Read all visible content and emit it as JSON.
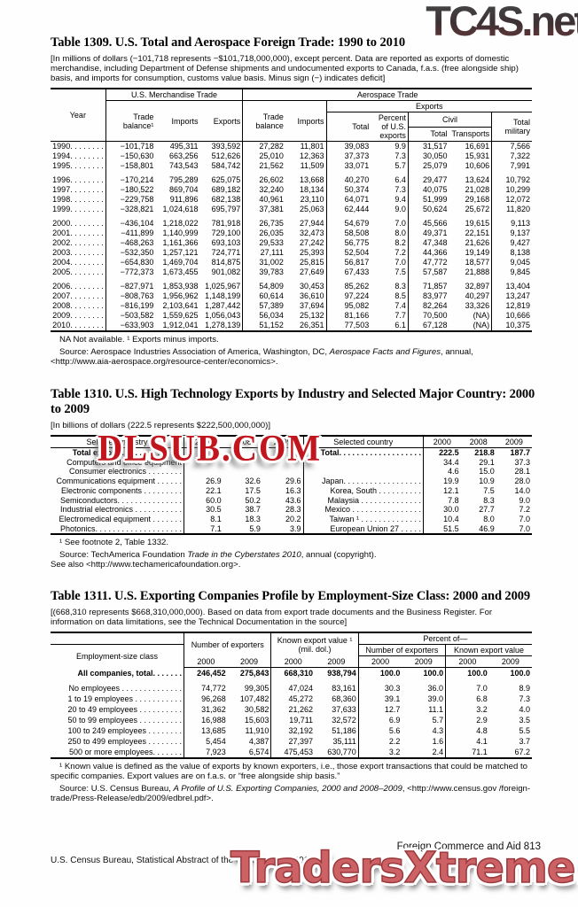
{
  "watermarks": {
    "top": "TC4S.net",
    "middle": "DLSUB.COM",
    "bottom": "TradersXtreme.com"
  },
  "footer": {
    "right": "Foreign Commerce and Aid  813",
    "left": "U.S. Census Bureau, Statistical Abstract of the United States: 2012"
  },
  "t1309": {
    "title": "Table 1309. U.S. Total and Aerospace Foreign Trade: 1990 to 2010",
    "headnote": "[In millions of dollars (−101,718 represents −$101,718,000,000), except percent. Data are reported as exports of domestic merchandise, including Department of Defense shipments and undocumented exports to Canada, f.a.s. (free alongside ship) basis, and imports for consumption, customs value basis. Minus sign (−) indicates deficit]",
    "h": {
      "year": "Year",
      "merch": "U.S. Merchandise Trade",
      "aero": "Aerospace Trade",
      "exports_grp": "Exports",
      "civil": "Civil",
      "trade_balance_fn": "Trade balance¹",
      "trade_balance": "Trade balance",
      "imports": "Imports",
      "exports": "Exports",
      "total": "Total",
      "pct": "Percent of U.S. exports",
      "transports": "Transports",
      "total_military": "Total military"
    },
    "rows": [
      {
        "cells": [
          "1990. . . . . . . .",
          "−101,718",
          "495,311",
          "393,592",
          "27,282",
          "11,801",
          "39,083",
          "9.9",
          "31,517",
          "16,691",
          "7,566"
        ]
      },
      {
        "cells": [
          "1994. . . . . . . .",
          "−150,630",
          "663,256",
          "512,626",
          "25,010",
          "12,363",
          "37,373",
          "7.3",
          "30,050",
          "15,931",
          "7,322"
        ]
      },
      {
        "cells": [
          "1995. . . . . . . .",
          "−158,801",
          "743,543",
          "584,742",
          "21,562",
          "11,509",
          "33,071",
          "5.7",
          "25,079",
          "10,606",
          "7,991"
        ]
      },
      {
        "gap": true,
        "cells": [
          "1996. . . . . . . .",
          "−170,214",
          "795,289",
          "625,075",
          "26,602",
          "13,668",
          "40,270",
          "6.4",
          "29,477",
          "13,624",
          "10,792"
        ]
      },
      {
        "cells": [
          "1997. . . . . . . .",
          "−180,522",
          "869,704",
          "689,182",
          "32,240",
          "18,134",
          "50,374",
          "7.3",
          "40,075",
          "21,028",
          "10,299"
        ]
      },
      {
        "cells": [
          "1998. . . . . . . .",
          "−229,758",
          "911,896",
          "682,138",
          "40,961",
          "23,110",
          "64,071",
          "9.4",
          "51,999",
          "29,168",
          "12,072"
        ]
      },
      {
        "cells": [
          "1999. . . . . . . .",
          "−328,821",
          "1,024,618",
          "695,797",
          "37,381",
          "25,063",
          "62,444",
          "9.0",
          "50,624",
          "25,672",
          "11,820"
        ]
      },
      {
        "gap": true,
        "cells": [
          "2000. . . . . . . .",
          "−436,104",
          "1,218,022",
          "781,918",
          "26,735",
          "27,944",
          "54,679",
          "7.0",
          "45,566",
          "19,615",
          "9,113"
        ]
      },
      {
        "cells": [
          "2001. . . . . . . .",
          "−411,899",
          "1,140,999",
          "729,100",
          "26,035",
          "32,473",
          "58,508",
          "8.0",
          "49,371",
          "22,151",
          "9,137"
        ]
      },
      {
        "cells": [
          "2002. . . . . . . .",
          "−468,263",
          "1,161,366",
          "693,103",
          "29,533",
          "27,242",
          "56,775",
          "8.2",
          "47,348",
          "21,626",
          "9,427"
        ]
      },
      {
        "cells": [
          "2003. . . . . . . .",
          "−532,350",
          "1,257,121",
          "724,771",
          "27,111",
          "25,393",
          "52,504",
          "7.2",
          "44,366",
          "19,149",
          "8,138"
        ]
      },
      {
        "cells": [
          "2004. . . . . . . .",
          "−654,830",
          "1,469,704",
          "814,875",
          "31,002",
          "25,815",
          "56,817",
          "7.0",
          "47,772",
          "18,577",
          "9,045"
        ]
      },
      {
        "cells": [
          "2005. . . . . . . .",
          "−772,373",
          "1,673,455",
          "901,082",
          "39,783",
          "27,649",
          "67,433",
          "7.5",
          "57,587",
          "21,888",
          "9,845"
        ]
      },
      {
        "gap": true,
        "cells": [
          "2006. . . . . . . .",
          "−827,971",
          "1,853,938",
          "1,025,967",
          "54,809",
          "30,453",
          "85,262",
          "8.3",
          "71,857",
          "32,897",
          "13,404"
        ]
      },
      {
        "cells": [
          "2007. . . . . . . .",
          "−808,763",
          "1,956,962",
          "1,148,199",
          "60,614",
          "36,610",
          "97,224",
          "8.5",
          "83,977",
          "40,297",
          "13,247"
        ]
      },
      {
        "cells": [
          "2008. . . . . . . .",
          "−816,199",
          "2,103,641",
          "1,287,442",
          "57,389",
          "37,694",
          "95,082",
          "7.4",
          "82,264",
          "33,326",
          "12,819"
        ]
      },
      {
        "cells": [
          "2009. . . . . . . .",
          "−503,582",
          "1,559,625",
          "1,056,043",
          "56,034",
          "25,132",
          "81,166",
          "7.7",
          "70,500",
          "(NA)",
          "10,666"
        ]
      },
      {
        "cells": [
          "2010. . . . . . . .",
          "−633,903",
          "1,912,041",
          "1,278,139",
          "51,152",
          "26,351",
          "77,503",
          "6.1",
          "67,128",
          "(NA)",
          "10,375"
        ]
      }
    ],
    "footnote": "NA Not available. ¹ Exports minus imports.",
    "source_prefix": "Source: Aerospace Industries Association of America, Washington, DC, ",
    "source_italic": "Aerospace Facts and Figures",
    "source_suffix": ", annual,",
    "source_line2": "<http://www.aia-aerospace.org/resource-center/economics>."
  },
  "t1310": {
    "title": "Table 1310. U.S. High Technology Exports by Industry and Selected Major Country: 2000 to 2009",
    "headnote": "[In billions of dollars (222.5 represents $222,500,000,000)]",
    "h": {
      "industry": "Selected industry",
      "country": "Selected country",
      "y2000": "2000",
      "y2008": "2008",
      "y2009": "2009"
    },
    "rows": [
      {
        "bold": true,
        "cells": [
          "Total exports. . . . . . . . . . . . . .",
          "",
          "",
          "",
          "Total. . . . . . . . . . . . . . . . . . .",
          "222.5",
          "218.8",
          "187.7"
        ]
      },
      {
        "cells": [
          "Computers and office equipment",
          "",
          "",
          "",
          "",
          "34.4",
          "29.1",
          "37.3"
        ]
      },
      {
        "cells": [
          "Consumer electronics . . . . . . . .",
          "",
          "",
          "",
          "",
          "4.6",
          "15.0",
          "28.1"
        ]
      },
      {
        "cells": [
          "Communications equipment . . . . . .",
          "26.9",
          "32.6",
          "29.6",
          "Japan. . . . . . . . . . . . . . . . . .",
          "19.9",
          "10.9",
          "28.0"
        ]
      },
      {
        "cells": [
          "Electronic components . . . . . . . . .",
          "22.1",
          "17.5",
          "16.3",
          "Korea, South . . . . . . . . . .",
          "12.1",
          "7.5",
          "14.0"
        ]
      },
      {
        "cells": [
          "Semiconductors. . . . . . . . . . . . . . .",
          "60.0",
          "50.2",
          "43.6",
          "Malaysia . . . . . . . . . . . . . .",
          "7.8",
          "8.3",
          "9.0"
        ]
      },
      {
        "cells": [
          "Industrial electronics . . . . . . . . . . .",
          "30.5",
          "38.7",
          "28.3",
          "Mexico . . . . . . . . . . . . . . . .",
          "30.0",
          "27.7",
          "7.2"
        ]
      },
      {
        "cells": [
          "Electromedical equipment . . . . . . .",
          "8.1",
          "18.3",
          "20.2",
          "Taiwan ¹ . . . . . . . . . . . . . .",
          "10.4",
          "8.0",
          "7.0"
        ]
      },
      {
        "cells": [
          "Photonics. . . . . . . . . . . . . . . . . . . .",
          "7.1",
          "5.9",
          "3.9",
          "European Union 27 . . . . .",
          "51.5",
          "46.9",
          "7.0"
        ]
      }
    ],
    "footnote": "¹ See footnote 2, Table 1332.",
    "source_prefix": "Source: TechAmerica Foundation ",
    "source_italic": "Trade in the Cyberstates 2010",
    "source_suffix": ", annual (copyright).",
    "source_line2": "See also <http://www.techamericafoundation.org>."
  },
  "t1311": {
    "title": "Table 1311. U.S. Exporting Companies Profile by Employment-Size Class: 2000 and 2009",
    "headnote": "[(668,310 represents $668,310,000,000). Based on data from export trade documents and the Business Register. For information on data limitations, see the Technical Documentation in the source]",
    "h": {
      "stub": "Employment-size class",
      "num_exporters": "Number of exporters",
      "known_value_fn": "Known export value ¹ (mil. dol.)",
      "percent_of": "Percent of—",
      "known_value": "Known export value",
      "y2000": "2000",
      "y2009": "2009"
    },
    "rows": [
      {
        "bold": true,
        "cells": [
          "All companies, total. . . . . . .",
          "246,452",
          "275,843",
          "668,310",
          "938,794",
          "100.0",
          "100.0",
          "100.0",
          "100.0"
        ]
      },
      {
        "gap": true,
        "cells": [
          "No employees . . . . . . . . . . . . . .",
          "74,772",
          "99,305",
          "47,024",
          "83,161",
          "30.3",
          "36.0",
          "7.0",
          "8.9"
        ]
      },
      {
        "cells": [
          "1 to 19 employees . . . . . . . . . . .",
          "96,268",
          "107,482",
          "45,272",
          "68,360",
          "39.1",
          "39.0",
          "6.8",
          "7.3"
        ]
      },
      {
        "cells": [
          "20 to 49 employees . . . . . . . . . .",
          "31,362",
          "30,582",
          "21,262",
          "37,633",
          "12.7",
          "11.1",
          "3.2",
          "4.0"
        ]
      },
      {
        "cells": [
          "50 to 99 employees . . . . . . . . . .",
          "16,988",
          "15,603",
          "19,711",
          "32,572",
          "6.9",
          "5.7",
          "2.9",
          "3.5"
        ]
      },
      {
        "cells": [
          "100 to 249 employees . . . . . . . .",
          "13,685",
          "11,910",
          "32,192",
          "51,186",
          "5.6",
          "4.3",
          "4.8",
          "5.5"
        ]
      },
      {
        "cells": [
          "250 to 499 employees . . . . . . . .",
          "5,454",
          "4,387",
          "27,397",
          "35,111",
          "2.2",
          "1.6",
          "4.1",
          "3.7"
        ]
      },
      {
        "cells": [
          "500 or more employees. . . . . . .",
          "7,923",
          "6,574",
          "475,453",
          "630,770",
          "3.2",
          "2.4",
          "71.1",
          "67.2"
        ]
      }
    ],
    "footnote": "¹ Known value is defined as the value of exports by known exporters, i.e., those export transactions that could be matched to specific companies. Export values are on f.a.s. or “free alongside ship basis.”",
    "source_prefix": "Source: U.S. Census Bureau, ",
    "source_italic": "A Profile of U.S. Exporting Companies, 2000 and 2008–2009",
    "source_suffix": ", <http://www.census.gov /foreign-trade/Press-Release/edb/2009/edbrel.pdf>."
  }
}
